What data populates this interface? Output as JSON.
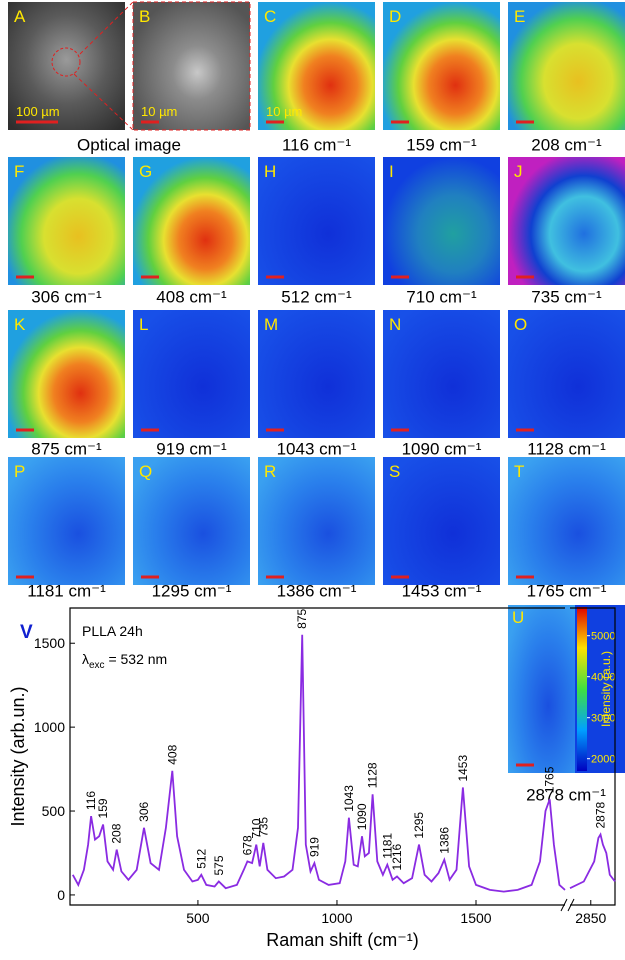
{
  "panels": [
    {
      "letter": "A",
      "scale": "100 µm"
    },
    {
      "letter": "B",
      "scale": "10 µm"
    },
    {
      "letter": "C",
      "label": "116 cm⁻¹",
      "scale": "10 µm"
    },
    {
      "letter": "D",
      "label": "159 cm⁻¹"
    },
    {
      "letter": "E",
      "label": "208 cm⁻¹"
    },
    {
      "letter": "F",
      "label": "306 cm⁻¹"
    },
    {
      "letter": "G",
      "label": "408 cm⁻¹"
    },
    {
      "letter": "H",
      "label": "512 cm⁻¹"
    },
    {
      "letter": "I",
      "label": "710 cm⁻¹"
    },
    {
      "letter": "J",
      "label": "735 cm⁻¹"
    },
    {
      "letter": "K",
      "label": "875 cm⁻¹"
    },
    {
      "letter": "L",
      "label": "919 cm⁻¹"
    },
    {
      "letter": "M",
      "label": "1043 cm⁻¹"
    },
    {
      "letter": "N",
      "label": "1090 cm⁻¹"
    },
    {
      "letter": "O",
      "label": "1128 cm⁻¹"
    },
    {
      "letter": "P",
      "label": "1181 cm⁻¹"
    },
    {
      "letter": "Q",
      "label": "1295 cm⁻¹"
    },
    {
      "letter": "R",
      "label": "1386 cm⁻¹"
    },
    {
      "letter": "S",
      "label": "1453 cm⁻¹"
    },
    {
      "letter": "T",
      "label": "1765 cm⁻¹"
    }
  ],
  "optical_label": "Optical image",
  "inset": {
    "letter": "U",
    "label": "2878 cm⁻¹",
    "colorbar_label": "Intensity (a.u.)",
    "clim": [
      1700,
      5700
    ],
    "cticks": [
      2000,
      3000,
      4000,
      5000
    ]
  },
  "chart_data": {
    "type": "line",
    "panel_letter": "V",
    "annotation": "PLLA 24h",
    "annotation_2": {
      "prefix": "λ",
      "sub": "exc",
      "suffix": " = 532 nm"
    },
    "x_label": "Raman shift (cm⁻¹)",
    "y_label": "Intensity (arb.un.)",
    "x_segments": [
      [
        40,
        1820
      ],
      [
        2790,
        2920
      ]
    ],
    "xticks": [
      500,
      1000,
      1500,
      2850
    ],
    "ylim": [
      -60,
      1710
    ],
    "yticks": [
      0,
      500,
      1000,
      1500
    ],
    "series": [
      {
        "color": "#8a2be2",
        "x": [
          50,
          70,
          90,
          105,
          116,
          130,
          145,
          159,
          175,
          195,
          208,
          225,
          250,
          280,
          306,
          330,
          360,
          385,
          408,
          425,
          450,
          480,
          500,
          512,
          530,
          560,
          575,
          600,
          640,
          665,
          678,
          695,
          710,
          722,
          735,
          750,
          780,
          810,
          840,
          860,
          875,
          888,
          905,
          919,
          935,
          970,
          1010,
          1030,
          1043,
          1060,
          1075,
          1090,
          1100,
          1115,
          1128,
          1145,
          1165,
          1181,
          1200,
          1216,
          1240,
          1270,
          1295,
          1315,
          1340,
          1365,
          1386,
          1405,
          1430,
          1453,
          1475,
          1500,
          1550,
          1600,
          1650,
          1700,
          1730,
          1750,
          1765,
          1780,
          1800,
          1820,
          2300,
          2790,
          2830,
          2860,
          2872,
          2878,
          2885,
          2895,
          2905,
          2920
        ],
        "values": [
          120,
          60,
          150,
          300,
          470,
          330,
          350,
          420,
          200,
          150,
          270,
          140,
          90,
          150,
          400,
          190,
          150,
          400,
          740,
          350,
          150,
          80,
          90,
          120,
          60,
          50,
          80,
          40,
          60,
          150,
          200,
          190,
          300,
          170,
          310,
          150,
          100,
          110,
          150,
          400,
          1550,
          300,
          140,
          190,
          90,
          60,
          70,
          200,
          460,
          180,
          170,
          350,
          230,
          250,
          600,
          200,
          120,
          180,
          90,
          110,
          70,
          100,
          300,
          120,
          80,
          130,
          210,
          90,
          150,
          640,
          170,
          60,
          30,
          20,
          30,
          60,
          200,
          500,
          570,
          300,
          60,
          30,
          null,
          40,
          80,
          200,
          340,
          360,
          300,
          250,
          120,
          80
        ]
      }
    ],
    "peak_labels": [
      116,
      159,
      208,
      306,
      408,
      512,
      575,
      678,
      710,
      735,
      875,
      919,
      1043,
      1090,
      1128,
      1181,
      1216,
      1295,
      1386,
      1453,
      1765,
      2878
    ]
  }
}
